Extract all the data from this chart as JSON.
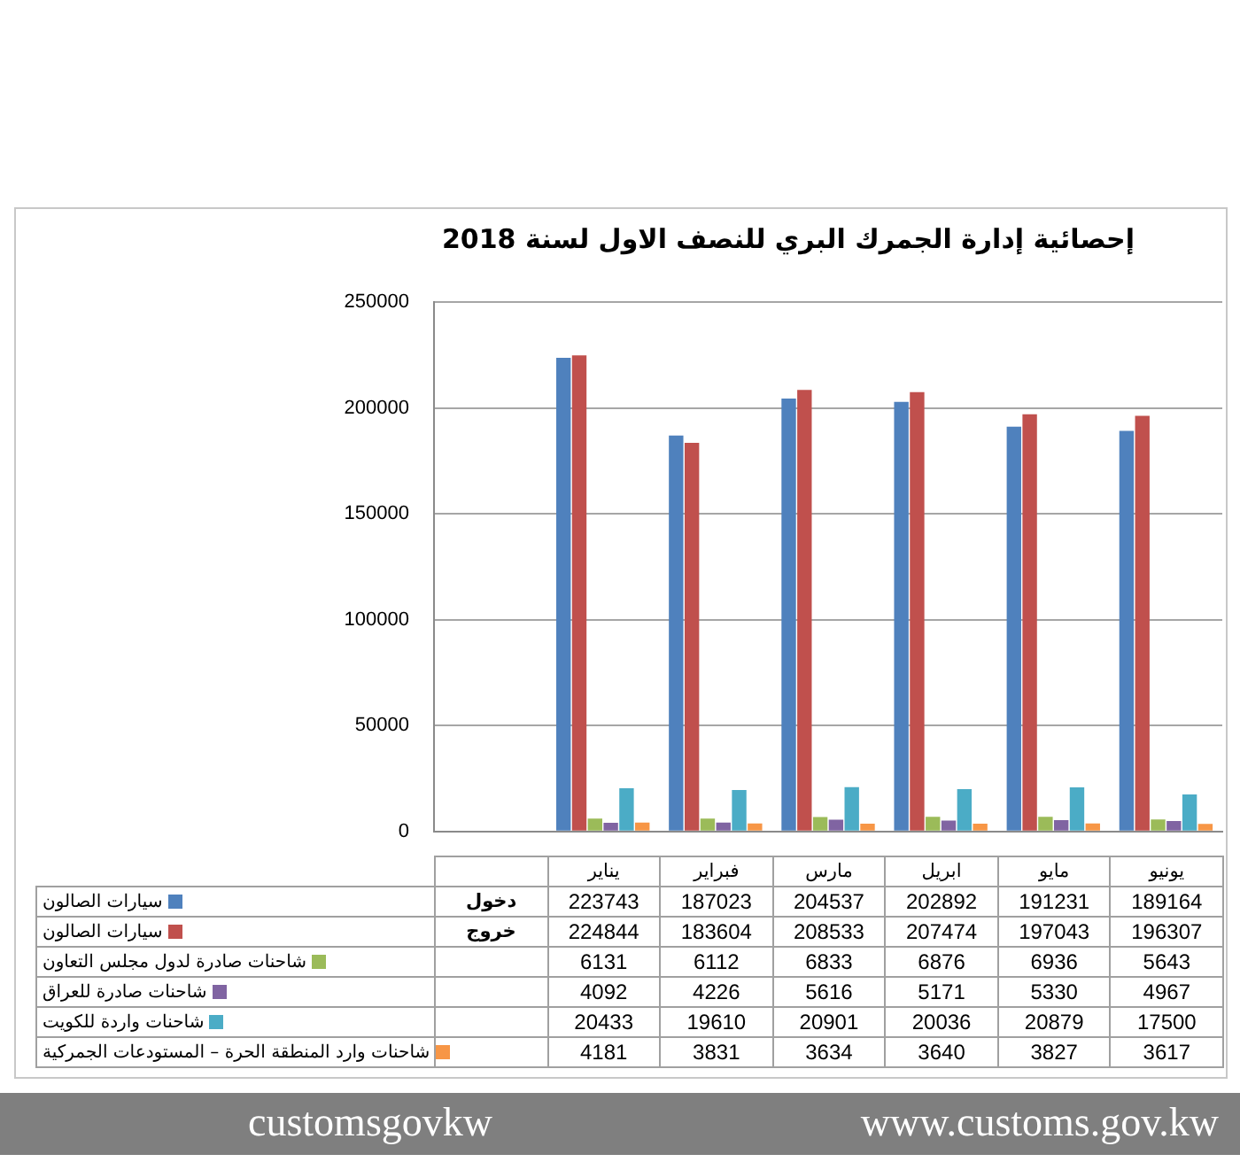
{
  "chart_data": {
    "type": "bar",
    "title": "إحصائية إدارة الجمرك البري للنصف الاول لسنة 2018",
    "categories": [
      null,
      "يناير",
      "فبراير",
      "مارس",
      "ابريل",
      "مايو",
      "يونيو"
    ],
    "series": [
      {
        "name": "سيارات الصالون",
        "color": "#4f81bd",
        "values": [
          0,
          223743,
          187023,
          204537,
          202892,
          191231,
          189164
        ],
        "value_labels": [
          "دخول",
          "223743",
          "187023",
          "204537",
          "202892",
          "191231",
          "189164"
        ]
      },
      {
        "name": "سيارات الصالون",
        "color": "#c0504d",
        "values": [
          0,
          224844,
          183604,
          208533,
          207474,
          197043,
          196307
        ],
        "value_labels": [
          "خروج",
          "224844",
          "183604",
          "208533",
          "207474",
          "197043",
          "196307"
        ]
      },
      {
        "name": "شاحنات صادرة لدول مجلس التعاون",
        "color": "#9bbb59",
        "values": [
          null,
          6131,
          6112,
          6833,
          6876,
          6936,
          5643
        ],
        "value_labels": [
          null,
          "6131",
          "6112",
          "6833",
          "6876",
          "6936",
          "5643"
        ]
      },
      {
        "name": "شاحنات صادرة للعراق",
        "color": "#8064a2",
        "values": [
          null,
          4092,
          4226,
          5616,
          5171,
          5330,
          4967
        ],
        "value_labels": [
          null,
          "4092",
          "4226",
          "5616",
          "5171",
          "5330",
          "4967"
        ]
      },
      {
        "name": "شاحنات واردة للكويت",
        "color": "#4bacc6",
        "values": [
          null,
          20433,
          19610,
          20901,
          20036,
          20879,
          17500
        ],
        "value_labels": [
          null,
          "20433",
          "19610",
          "20901",
          "20036",
          "20879",
          "17500"
        ]
      },
      {
        "name": "شاحنات وارد المنطقة الحرة – المستودعات الجمركية",
        "color": "#f79646",
        "values": [
          null,
          4181,
          3831,
          3634,
          3640,
          3827,
          3617
        ],
        "value_labels": [
          null,
          "4181",
          "3831",
          "3634",
          "3640",
          "3827",
          "3617"
        ]
      }
    ],
    "ylim": [
      0,
      250000
    ],
    "yticks": [
      0,
      50000,
      100000,
      150000,
      200000,
      250000
    ],
    "grid": "y",
    "legend": "bottom",
    "annotations": [
      "customsgovkw",
      "www.customs.gov.kw"
    ]
  }
}
